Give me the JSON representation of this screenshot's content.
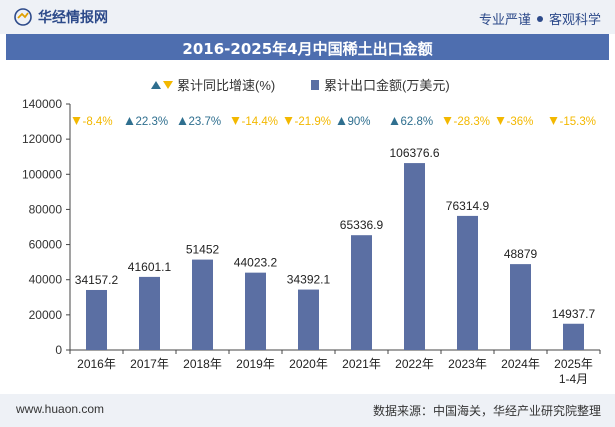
{
  "header": {
    "brand": "华经情报网",
    "right_left": "专业严谨",
    "right_right": "客观科学"
  },
  "footer": {
    "website": "www.huaon.com",
    "source": "数据来源：中国海关，华经产业研究院整理"
  },
  "colors": {
    "bar": "#5b6fa3",
    "up": "#2f6f8f",
    "down": "#f3b800",
    "title_bg": "#4e6eaf"
  },
  "chart_data": {
    "type": "bar",
    "title": "2016-2025年4月中国稀土出口金额",
    "legend": {
      "growth": "累计同比增速(%)",
      "amount": "累计出口金额(万美元)"
    },
    "categories": [
      "2016年",
      "2017年",
      "2018年",
      "2019年",
      "2020年",
      "2021年",
      "2022年",
      "2023年",
      "2024年",
      "2025年\n1-4月"
    ],
    "values": [
      34157.2,
      41601.1,
      51452,
      44023.2,
      34392.1,
      65336.9,
      106376.6,
      76314.9,
      48879,
      14937.7
    ],
    "value_labels": [
      "34157.2",
      "41601.1",
      "51452",
      "44023.2",
      "34392.1",
      "65336.9",
      "106376.6",
      "76314.9",
      "48879",
      "14937.7"
    ],
    "growth": [
      -8.4,
      22.3,
      23.7,
      -14.4,
      -21.9,
      90,
      62.8,
      -28.3,
      -36,
      -15.3
    ],
    "growth_labels": [
      "-8.4%",
      "22.3%",
      "23.7%",
      "-14.4%",
      "-21.9%",
      "90%",
      "62.8%",
      "-28.3%",
      "-36%",
      "-15.3%"
    ],
    "ylim": [
      0,
      140000
    ],
    "yticks": [
      "0",
      "20000",
      "40000",
      "60000",
      "80000",
      "100000",
      "120000",
      "140000"
    ],
    "grid": false
  }
}
